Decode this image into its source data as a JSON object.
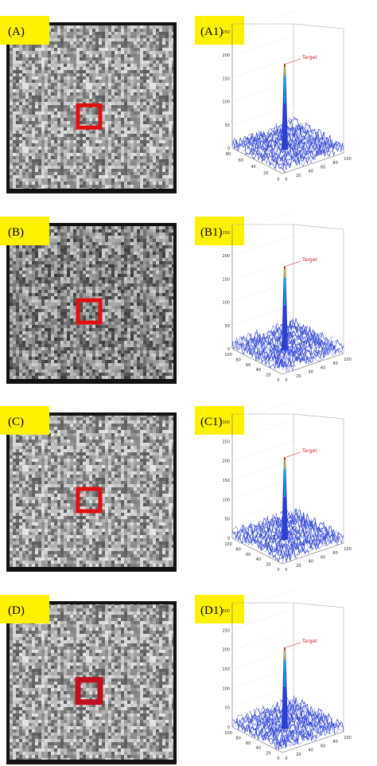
{
  "panels": [
    {
      "image_label": "(A)",
      "plot_label": "(A1)",
      "target": "Target",
      "zticks": [
        0,
        50,
        100,
        150,
        200,
        250
      ],
      "left_ticks": [
        80,
        60,
        40,
        20,
        0
      ],
      "right_ticks": [
        0,
        20,
        40,
        60,
        80,
        100
      ]
    },
    {
      "image_label": "(B)",
      "plot_label": "(B1)",
      "target": "Target",
      "zticks": [
        0,
        50,
        100,
        150,
        200,
        250
      ],
      "left_ticks": [
        100,
        80,
        60,
        40,
        20,
        0
      ],
      "right_ticks": [
        0,
        20,
        40,
        60,
        80,
        100
      ]
    },
    {
      "image_label": "(C)",
      "plot_label": "(C1)",
      "target": "Target",
      "zticks": [
        0,
        50,
        100,
        150,
        200,
        250,
        300
      ],
      "left_ticks": [
        100,
        80,
        60,
        40,
        20,
        0
      ],
      "right_ticks": [
        0,
        20,
        40,
        60,
        80,
        100
      ]
    },
    {
      "image_label": "(D)",
      "plot_label": "(D1)",
      "target": "Target",
      "zticks": [
        0,
        50,
        100,
        150,
        200,
        250,
        300
      ],
      "left_ticks": [
        100,
        80,
        60,
        40,
        20,
        0
      ],
      "right_ticks": [
        0,
        20,
        40,
        60,
        80,
        100
      ]
    }
  ]
}
